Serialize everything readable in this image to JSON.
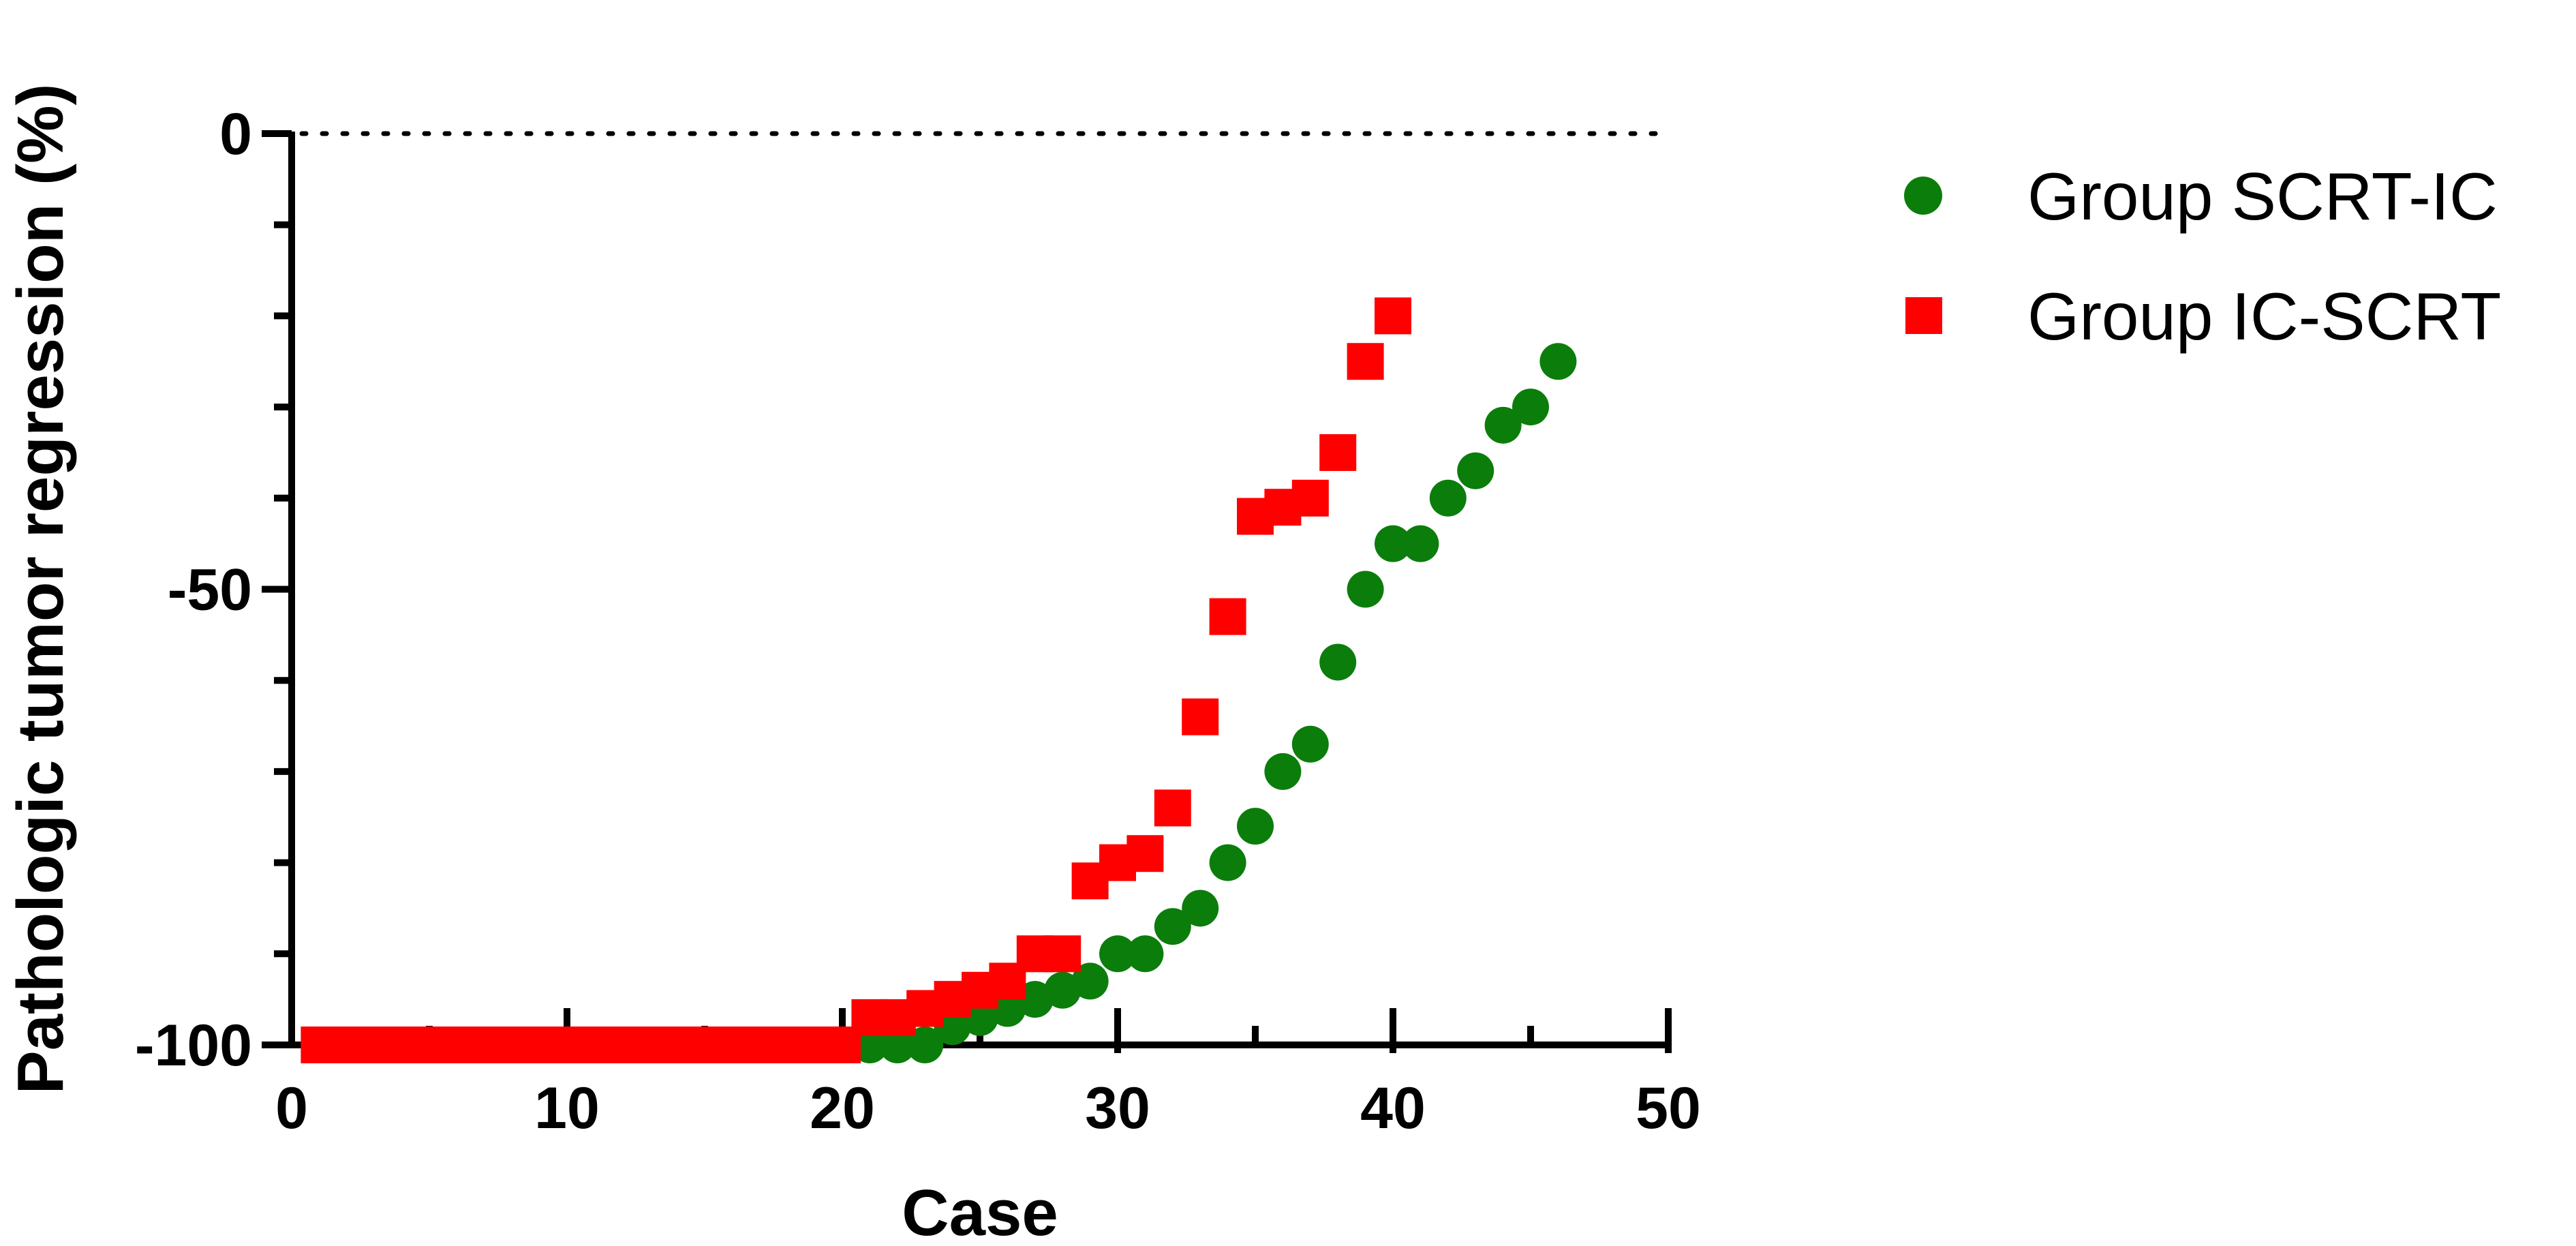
{
  "chart_data": {
    "type": "scatter",
    "xlabel": "Case",
    "ylabel": "Pathologic tumor regression (%)",
    "xlim": [
      0,
      50
    ],
    "ylim": [
      -100,
      0
    ],
    "x_ticks": [
      "0",
      "10",
      "20",
      "30",
      "40",
      "50"
    ],
    "y_ticks": [
      "0",
      "-50",
      "-100"
    ],
    "reference_line": {
      "y": 0,
      "style": "dotted"
    },
    "grid": false,
    "legend_position": "top-right",
    "series": [
      {
        "name": "Group SCRT-IC",
        "marker": "circle",
        "color": "#0b7d0b",
        "points": [
          [
            1,
            -100
          ],
          [
            2,
            -100
          ],
          [
            3,
            -100
          ],
          [
            4,
            -100
          ],
          [
            5,
            -100
          ],
          [
            6,
            -100
          ],
          [
            7,
            -100
          ],
          [
            8,
            -100
          ],
          [
            9,
            -100
          ],
          [
            10,
            -100
          ],
          [
            11,
            -100
          ],
          [
            12,
            -100
          ],
          [
            13,
            -100
          ],
          [
            14,
            -100
          ],
          [
            15,
            -100
          ],
          [
            16,
            -100
          ],
          [
            17,
            -100
          ],
          [
            18,
            -100
          ],
          [
            19,
            -100
          ],
          [
            20,
            -100
          ],
          [
            21,
            -100
          ],
          [
            22,
            -100
          ],
          [
            23,
            -100
          ],
          [
            24,
            -98
          ],
          [
            25,
            -97
          ],
          [
            26,
            -96
          ],
          [
            27,
            -95
          ],
          [
            28,
            -94
          ],
          [
            29,
            -93
          ],
          [
            30,
            -90
          ],
          [
            31,
            -90
          ],
          [
            32,
            -87
          ],
          [
            33,
            -85
          ],
          [
            34,
            -80
          ],
          [
            35,
            -76
          ],
          [
            36,
            -70
          ],
          [
            37,
            -67
          ],
          [
            38,
            -58
          ],
          [
            39,
            -50
          ],
          [
            40,
            -45
          ],
          [
            41,
            -45
          ],
          [
            42,
            -40
          ],
          [
            43,
            -37
          ],
          [
            44,
            -32
          ],
          [
            45,
            -30
          ],
          [
            46,
            -25
          ]
        ]
      },
      {
        "name": "Group IC-SCRT",
        "marker": "square",
        "color": "#ff0000",
        "points": [
          [
            1,
            -100
          ],
          [
            2,
            -100
          ],
          [
            3,
            -100
          ],
          [
            4,
            -100
          ],
          [
            5,
            -100
          ],
          [
            6,
            -100
          ],
          [
            7,
            -100
          ],
          [
            8,
            -100
          ],
          [
            9,
            -100
          ],
          [
            10,
            -100
          ],
          [
            11,
            -100
          ],
          [
            12,
            -100
          ],
          [
            13,
            -100
          ],
          [
            14,
            -100
          ],
          [
            15,
            -100
          ],
          [
            16,
            -100
          ],
          [
            17,
            -100
          ],
          [
            18,
            -100
          ],
          [
            19,
            -100
          ],
          [
            20,
            -100
          ],
          [
            21,
            -97
          ],
          [
            22,
            -97
          ],
          [
            23,
            -96
          ],
          [
            24,
            -95
          ],
          [
            25,
            -94
          ],
          [
            26,
            -93
          ],
          [
            27,
            -90
          ],
          [
            28,
            -90
          ],
          [
            29,
            -82
          ],
          [
            30,
            -80
          ],
          [
            31,
            -79
          ],
          [
            32,
            -74
          ],
          [
            33,
            -64
          ],
          [
            34,
            -53
          ],
          [
            35,
            -42
          ],
          [
            36,
            -41
          ],
          [
            37,
            -40
          ],
          [
            38,
            -35
          ],
          [
            39,
            -25
          ],
          [
            40,
            -20
          ]
        ]
      }
    ]
  }
}
